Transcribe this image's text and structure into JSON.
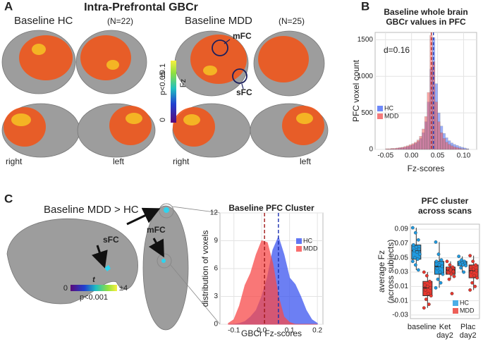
{
  "panel_a": {
    "label": "A",
    "title": "Intra-Prefrontal GBCr",
    "group_hc": "Baseline HC",
    "n_hc": "(N=22)",
    "group_mdd": "Baseline MDD",
    "n_mdd": "(N=25)",
    "roi_1": "mFC",
    "roi_2": "sFC",
    "colorbar_max": "±0.1",
    "colorbar_unit": "Fz",
    "colorbar_threshold": "p<0.05",
    "colorbar_min": "0",
    "views": [
      "right",
      "left",
      "right",
      "left"
    ]
  },
  "panel_b": {
    "label": "B"
  },
  "panel_c": {
    "label": "C",
    "title": "Baseline MDD > HC",
    "roi_1": "sFC",
    "roi_2": "mFC",
    "colorbar_min": "0",
    "colorbar_unit": "t",
    "colorbar_max": "±4",
    "colorbar_threshold": "p<0.001"
  },
  "chart_data": [
    {
      "type": "histogram",
      "title": [
        "Baseline whole brain",
        "GBCr values in PFC"
      ],
      "annotation": "d=0.16",
      "xlabel": "Fz-scores",
      "ylabel": "PFC voxel count",
      "bins": [
        -0.05,
        -0.045,
        -0.04,
        -0.035,
        -0.03,
        -0.025,
        -0.02,
        -0.015,
        -0.01,
        -0.005,
        0,
        0.005,
        0.01,
        0.015,
        0.02,
        0.025,
        0.03,
        0.035,
        0.04,
        0.045,
        0.05,
        0.055,
        0.06,
        0.065,
        0.07,
        0.075,
        0.08,
        0.085,
        0.09,
        0.095,
        0.1,
        0.105,
        0.11
      ],
      "series": [
        {
          "name": "HC",
          "color": "#4a6cf7",
          "mean": 0.042,
          "values": [
            5,
            5,
            10,
            10,
            15,
            20,
            25,
            30,
            40,
            50,
            65,
            85,
            110,
            150,
            230,
            380,
            650,
            1100,
            1530,
            900,
            500,
            320,
            220,
            160,
            120,
            90,
            70,
            55,
            40,
            30,
            20,
            10
          ]
        },
        {
          "name": "MDD",
          "color": "#f25a5a",
          "mean": 0.038,
          "values": [
            10,
            10,
            15,
            15,
            20,
            25,
            30,
            40,
            50,
            65,
            80,
            100,
            130,
            180,
            280,
            450,
            780,
            1560,
            1200,
            650,
            380,
            230,
            150,
            100,
            70,
            50,
            35,
            25,
            15,
            10,
            5,
            5
          ]
        }
      ],
      "xlim": [
        -0.07,
        0.125
      ],
      "xticks": [
        -0.05,
        {
          "value": 0,
          "label": "0.00"
        },
        0.05,
        {
          "value": 0.1,
          "label": "0.10"
        }
      ],
      "ylim": [
        0,
        1600
      ],
      "yticks": [
        0,
        500,
        1000,
        1500
      ],
      "grid": true,
      "legend": "center left"
    },
    {
      "type": "area",
      "title": [
        "Baseline PFC Cluster"
      ],
      "xlabel": "GBCr Fz-scores",
      "ylabel": "distribution of voxels",
      "x": [
        -0.12,
        -0.1,
        -0.08,
        -0.06,
        -0.04,
        -0.02,
        0,
        0.02,
        0.04,
        0.06,
        0.08,
        0.1,
        0.12,
        0.14,
        0.16,
        0.18,
        0.2
      ],
      "series": [
        {
          "name": "HC",
          "color": "#3b55f0",
          "mean": 0.06,
          "values": [
            0,
            0,
            0.1,
            0.3,
            0.8,
            1.5,
            3,
            5,
            8,
            9.4,
            7.5,
            5,
            4.3,
            3,
            1.5,
            0.5,
            0.1
          ]
        },
        {
          "name": "MDD",
          "color": "#f74a4a",
          "mean": 0.01,
          "values": [
            0.1,
            0.5,
            2,
            4.2,
            5.5,
            7.5,
            9,
            8.8,
            6.5,
            3,
            0.8,
            0.2,
            0,
            0,
            0,
            0,
            0
          ]
        }
      ],
      "xlim": [
        -0.15,
        0.22
      ],
      "xticks": [
        -0.1,
        {
          "value": 0,
          "label": "0.0"
        },
        0.1,
        0.2
      ],
      "ylim": [
        0,
        12
      ],
      "yticks": [
        0,
        3,
        6,
        9,
        12
      ],
      "grid": true,
      "legend": "upper right"
    },
    {
      "type": "box",
      "title": [
        "PFC cluster",
        "across scans"
      ],
      "ylabel": [
        "average Fz",
        "(across subjects)"
      ],
      "categories": [
        [
          "baseline"
        ],
        [
          "Ket",
          "day2"
        ],
        [
          "Plac",
          "day2"
        ]
      ],
      "series": [
        {
          "name": "HC",
          "color": "#1f9ae0",
          "boxes": [
            {
              "min": 0.033,
              "q1": 0.048,
              "median": 0.06,
              "q3": 0.068,
              "max": 0.092
            },
            {
              "min": 0.008,
              "q1": 0.027,
              "median": 0.038,
              "q3": 0.045,
              "max": 0.072
            },
            {
              "min": 0.03,
              "q1": 0.039,
              "median": 0.043,
              "q3": 0.045,
              "max": 0.052
            }
          ],
          "points": [
            [
              0.092,
              0.085,
              0.075,
              0.068,
              0.065,
              0.062,
              0.06,
              0.058,
              0.055,
              0.05,
              0.048,
              0.045,
              0.04,
              0.033
            ],
            [
              0.072,
              0.055,
              0.047,
              0.045,
              0.04,
              0.038,
              0.035,
              0.03,
              0.027,
              0.02,
              0.015,
              0.008
            ],
            [
              0.052,
              0.047,
              0.045,
              0.044,
              0.043,
              0.042,
              0.041,
              0.04,
              0.039,
              0.036,
              0.03
            ]
          ]
        },
        {
          "name": "MDD",
          "color": "#e8372e",
          "boxes": [
            {
              "min": -0.02,
              "q1": -0.003,
              "median": 0.008,
              "q3": 0.017,
              "max": 0.03
            },
            {
              "min": 0.02,
              "q1": 0.027,
              "median": 0.033,
              "q3": 0.037,
              "max": 0.045
            },
            {
              "min": 0.005,
              "q1": 0.022,
              "median": 0.032,
              "q3": 0.04,
              "max": 0.053
            }
          ],
          "points": [
            [
              0.03,
              0.025,
              0.017,
              0.012,
              0.01,
              0.008,
              0.005,
              0,
              -0.003,
              -0.008,
              -0.015,
              -0.02
            ],
            [
              0.045,
              0.04,
              0.037,
              0.035,
              0.033,
              0.031,
              0.029,
              0.027,
              0.024,
              0.02,
              0
            ],
            [
              0.053,
              0.045,
              0.04,
              0.037,
              0.034,
              0.032,
              0.03,
              0.025,
              0.022,
              0.015,
              0.01,
              0.005
            ]
          ]
        }
      ],
      "ylim": [
        -0.035,
        0.097
      ],
      "yticks": [
        -0.03,
        -0.01,
        0.01,
        0.03,
        0.05,
        0.07,
        0.09
      ],
      "grid": true,
      "legend": "lower right"
    }
  ]
}
